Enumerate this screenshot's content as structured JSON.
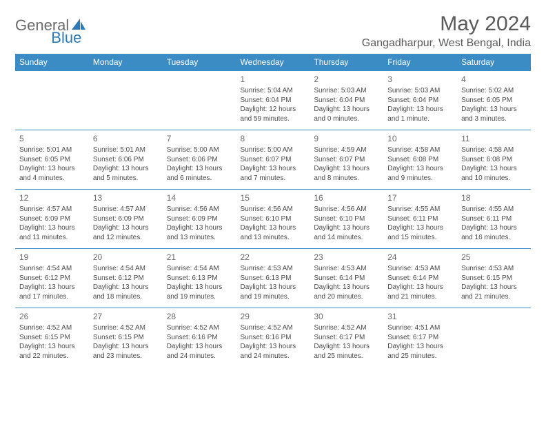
{
  "logo": {
    "part1": "General",
    "part2": "Blue"
  },
  "title": "May 2024",
  "location": "Gangadharpur, West Bengal, India",
  "colors": {
    "header_bg": "#3b8bc4",
    "header_text": "#ffffff",
    "border": "#3b8bc4",
    "text": "#4a4a4a",
    "title_text": "#5a5a5a",
    "logo_gray": "#6b6b6b",
    "logo_blue": "#2a7ab8"
  },
  "weekdays": [
    "Sunday",
    "Monday",
    "Tuesday",
    "Wednesday",
    "Thursday",
    "Friday",
    "Saturday"
  ],
  "weeks": [
    [
      null,
      null,
      null,
      {
        "n": "1",
        "sr": "5:04 AM",
        "ss": "6:04 PM",
        "dl": "12 hours and 59 minutes."
      },
      {
        "n": "2",
        "sr": "5:03 AM",
        "ss": "6:04 PM",
        "dl": "13 hours and 0 minutes."
      },
      {
        "n": "3",
        "sr": "5:03 AM",
        "ss": "6:04 PM",
        "dl": "13 hours and 1 minute."
      },
      {
        "n": "4",
        "sr": "5:02 AM",
        "ss": "6:05 PM",
        "dl": "13 hours and 3 minutes."
      }
    ],
    [
      {
        "n": "5",
        "sr": "5:01 AM",
        "ss": "6:05 PM",
        "dl": "13 hours and 4 minutes."
      },
      {
        "n": "6",
        "sr": "5:01 AM",
        "ss": "6:06 PM",
        "dl": "13 hours and 5 minutes."
      },
      {
        "n": "7",
        "sr": "5:00 AM",
        "ss": "6:06 PM",
        "dl": "13 hours and 6 minutes."
      },
      {
        "n": "8",
        "sr": "5:00 AM",
        "ss": "6:07 PM",
        "dl": "13 hours and 7 minutes."
      },
      {
        "n": "9",
        "sr": "4:59 AM",
        "ss": "6:07 PM",
        "dl": "13 hours and 8 minutes."
      },
      {
        "n": "10",
        "sr": "4:58 AM",
        "ss": "6:08 PM",
        "dl": "13 hours and 9 minutes."
      },
      {
        "n": "11",
        "sr": "4:58 AM",
        "ss": "6:08 PM",
        "dl": "13 hours and 10 minutes."
      }
    ],
    [
      {
        "n": "12",
        "sr": "4:57 AM",
        "ss": "6:09 PM",
        "dl": "13 hours and 11 minutes."
      },
      {
        "n": "13",
        "sr": "4:57 AM",
        "ss": "6:09 PM",
        "dl": "13 hours and 12 minutes."
      },
      {
        "n": "14",
        "sr": "4:56 AM",
        "ss": "6:09 PM",
        "dl": "13 hours and 13 minutes."
      },
      {
        "n": "15",
        "sr": "4:56 AM",
        "ss": "6:10 PM",
        "dl": "13 hours and 13 minutes."
      },
      {
        "n": "16",
        "sr": "4:56 AM",
        "ss": "6:10 PM",
        "dl": "13 hours and 14 minutes."
      },
      {
        "n": "17",
        "sr": "4:55 AM",
        "ss": "6:11 PM",
        "dl": "13 hours and 15 minutes."
      },
      {
        "n": "18",
        "sr": "4:55 AM",
        "ss": "6:11 PM",
        "dl": "13 hours and 16 minutes."
      }
    ],
    [
      {
        "n": "19",
        "sr": "4:54 AM",
        "ss": "6:12 PM",
        "dl": "13 hours and 17 minutes."
      },
      {
        "n": "20",
        "sr": "4:54 AM",
        "ss": "6:12 PM",
        "dl": "13 hours and 18 minutes."
      },
      {
        "n": "21",
        "sr": "4:54 AM",
        "ss": "6:13 PM",
        "dl": "13 hours and 19 minutes."
      },
      {
        "n": "22",
        "sr": "4:53 AM",
        "ss": "6:13 PM",
        "dl": "13 hours and 19 minutes."
      },
      {
        "n": "23",
        "sr": "4:53 AM",
        "ss": "6:14 PM",
        "dl": "13 hours and 20 minutes."
      },
      {
        "n": "24",
        "sr": "4:53 AM",
        "ss": "6:14 PM",
        "dl": "13 hours and 21 minutes."
      },
      {
        "n": "25",
        "sr": "4:53 AM",
        "ss": "6:15 PM",
        "dl": "13 hours and 21 minutes."
      }
    ],
    [
      {
        "n": "26",
        "sr": "4:52 AM",
        "ss": "6:15 PM",
        "dl": "13 hours and 22 minutes."
      },
      {
        "n": "27",
        "sr": "4:52 AM",
        "ss": "6:15 PM",
        "dl": "13 hours and 23 minutes."
      },
      {
        "n": "28",
        "sr": "4:52 AM",
        "ss": "6:16 PM",
        "dl": "13 hours and 24 minutes."
      },
      {
        "n": "29",
        "sr": "4:52 AM",
        "ss": "6:16 PM",
        "dl": "13 hours and 24 minutes."
      },
      {
        "n": "30",
        "sr": "4:52 AM",
        "ss": "6:17 PM",
        "dl": "13 hours and 25 minutes."
      },
      {
        "n": "31",
        "sr": "4:51 AM",
        "ss": "6:17 PM",
        "dl": "13 hours and 25 minutes."
      },
      null
    ]
  ],
  "labels": {
    "sunrise": "Sunrise:",
    "sunset": "Sunset:",
    "daylight": "Daylight:"
  }
}
